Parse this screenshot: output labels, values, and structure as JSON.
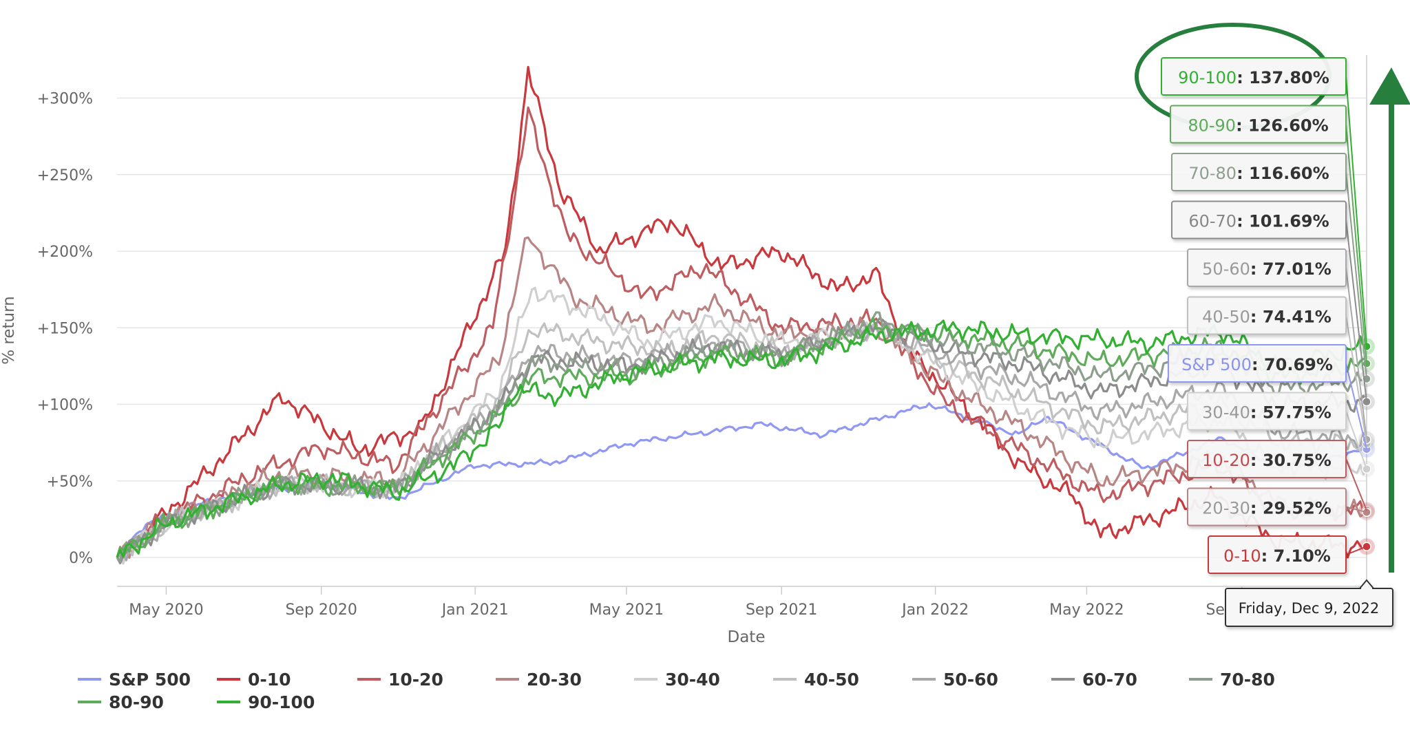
{
  "chart_data": {
    "type": "line",
    "title": "",
    "xlabel": "Date",
    "ylabel": "% return",
    "x_ticks": [
      "May 2020",
      "Sep 2020",
      "Jan 2021",
      "May 2021",
      "Sep 2021",
      "Jan 2022",
      "May 2022",
      "Sep 2022"
    ],
    "y_ticks": [
      "0%",
      "+50%",
      "+100%",
      "+150%",
      "+200%",
      "+250%",
      "+300%"
    ],
    "ylim": [
      -15,
      320
    ],
    "xlim": [
      "2020-03-23",
      "2022-12-09"
    ],
    "grid": true,
    "legend_position": "bottom",
    "hover_date": "Friday, Dec 9, 2022",
    "series": [
      {
        "name": "S&P 500",
        "color": "#9098f3",
        "final_value": "70.69%",
        "final": 70.69,
        "points": [
          [
            "2020-03-23",
            0
          ],
          [
            "2020-04-15",
            22
          ],
          [
            "2020-06-08",
            38
          ],
          [
            "2020-09-02",
            48
          ],
          [
            "2020-10-30",
            38
          ],
          [
            "2020-12-31",
            60
          ],
          [
            "2021-03-04",
            62
          ],
          [
            "2021-05-07",
            75
          ],
          [
            "2021-08-16",
            87
          ],
          [
            "2021-10-04",
            80
          ],
          [
            "2021-12-27",
            100
          ],
          [
            "2022-03-08",
            80
          ],
          [
            "2022-03-29",
            92
          ],
          [
            "2022-06-16",
            58
          ],
          [
            "2022-08-16",
            78
          ],
          [
            "2022-09-30",
            58
          ],
          [
            "2022-12-09",
            70.69
          ]
        ]
      },
      {
        "name": "0-10",
        "color": "#c8383c",
        "final_value": "7.10%",
        "final": 7.1,
        "points": [
          [
            "2020-03-23",
            0
          ],
          [
            "2020-04-20",
            20
          ],
          [
            "2020-06-20",
            70
          ],
          [
            "2020-08-01",
            105
          ],
          [
            "2020-10-01",
            70
          ],
          [
            "2020-11-20",
            85
          ],
          [
            "2021-01-25",
            200
          ],
          [
            "2021-02-12",
            318
          ],
          [
            "2021-03-10",
            240
          ],
          [
            "2021-04-10",
            200
          ],
          [
            "2021-06-05",
            220
          ],
          [
            "2021-07-15",
            190
          ],
          [
            "2021-09-01",
            200
          ],
          [
            "2021-10-15",
            175
          ],
          [
            "2021-11-15",
            185
          ],
          [
            "2021-12-10",
            135
          ],
          [
            "2022-02-10",
            85
          ],
          [
            "2022-03-10",
            60
          ],
          [
            "2022-04-20",
            40
          ],
          [
            "2022-05-12",
            15
          ],
          [
            "2022-06-20",
            25
          ],
          [
            "2022-08-10",
            40
          ],
          [
            "2022-09-30",
            10
          ],
          [
            "2022-12-09",
            7.1
          ]
        ]
      },
      {
        "name": "10-20",
        "color": "#bf5c60",
        "final_value": "30.75%",
        "final": 30.75,
        "points": [
          [
            "2020-03-23",
            0
          ],
          [
            "2020-04-20",
            20
          ],
          [
            "2020-07-10",
            55
          ],
          [
            "2020-09-01",
            72
          ],
          [
            "2020-10-30",
            60
          ],
          [
            "2021-01-15",
            150
          ],
          [
            "2021-02-12",
            290
          ],
          [
            "2021-03-15",
            210
          ],
          [
            "2021-05-15",
            170
          ],
          [
            "2021-07-01",
            190
          ],
          [
            "2021-09-01",
            150
          ],
          [
            "2021-11-15",
            155
          ],
          [
            "2022-01-10",
            100
          ],
          [
            "2022-03-10",
            70
          ],
          [
            "2022-04-10",
            55
          ],
          [
            "2022-05-12",
            40
          ],
          [
            "2022-08-15",
            60
          ],
          [
            "2022-09-30",
            30
          ],
          [
            "2022-12-09",
            30.75
          ]
        ]
      },
      {
        "name": "20-30",
        "color": "#b88484",
        "final_value": "29.52%",
        "final": 29.52,
        "points": [
          [
            "2020-03-23",
            0
          ],
          [
            "2020-05-01",
            25
          ],
          [
            "2020-08-01",
            55
          ],
          [
            "2020-10-30",
            50
          ],
          [
            "2021-01-20",
            130
          ],
          [
            "2021-02-12",
            210
          ],
          [
            "2021-03-20",
            170
          ],
          [
            "2021-05-20",
            150
          ],
          [
            "2021-07-10",
            165
          ],
          [
            "2021-09-01",
            145
          ],
          [
            "2021-11-15",
            150
          ],
          [
            "2022-01-15",
            110
          ],
          [
            "2022-03-10",
            85
          ],
          [
            "2022-05-12",
            50
          ],
          [
            "2022-08-15",
            65
          ],
          [
            "2022-09-30",
            35
          ],
          [
            "2022-12-09",
            29.52
          ]
        ]
      },
      {
        "name": "30-40",
        "color": "#cfcfcf",
        "final_value": "57.75%",
        "final": 57.75,
        "points": [
          [
            "2020-03-23",
            0
          ],
          [
            "2020-05-01",
            22
          ],
          [
            "2020-08-01",
            48
          ],
          [
            "2020-10-30",
            45
          ],
          [
            "2021-01-20",
            110
          ],
          [
            "2021-02-15",
            175
          ],
          [
            "2021-04-01",
            160
          ],
          [
            "2021-05-20",
            140
          ],
          [
            "2021-07-10",
            155
          ],
          [
            "2021-09-01",
            140
          ],
          [
            "2021-11-15",
            150
          ],
          [
            "2022-01-15",
            120
          ],
          [
            "2022-03-15",
            95
          ],
          [
            "2022-05-12",
            75
          ],
          [
            "2022-08-15",
            90
          ],
          [
            "2022-09-30",
            60
          ],
          [
            "2022-12-09",
            57.75
          ]
        ]
      },
      {
        "name": "40-50",
        "color": "#c0c0c0",
        "final_value": "74.41%",
        "final": 74.41,
        "points": [
          [
            "2020-03-23",
            0
          ],
          [
            "2020-05-01",
            22
          ],
          [
            "2020-08-01",
            48
          ],
          [
            "2020-10-30",
            45
          ],
          [
            "2021-01-20",
            105
          ],
          [
            "2021-02-15",
            150
          ],
          [
            "2021-04-15",
            140
          ],
          [
            "2021-06-01",
            135
          ],
          [
            "2021-07-10",
            145
          ],
          [
            "2021-09-01",
            135
          ],
          [
            "2021-11-15",
            150
          ],
          [
            "2022-01-15",
            125
          ],
          [
            "2022-03-15",
            105
          ],
          [
            "2022-05-12",
            85
          ],
          [
            "2022-08-15",
            100
          ],
          [
            "2022-09-30",
            75
          ],
          [
            "2022-12-09",
            74.41
          ]
        ]
      },
      {
        "name": "50-60",
        "color": "#a8a8a8",
        "final_value": "77.01%",
        "final": 77.01,
        "points": [
          [
            "2020-03-23",
            0
          ],
          [
            "2020-05-01",
            22
          ],
          [
            "2020-08-01",
            48
          ],
          [
            "2020-10-30",
            45
          ],
          [
            "2021-01-20",
            100
          ],
          [
            "2021-02-15",
            135
          ],
          [
            "2021-05-01",
            128
          ],
          [
            "2021-07-10",
            140
          ],
          [
            "2021-09-01",
            133
          ],
          [
            "2021-11-15",
            150
          ],
          [
            "2022-01-15",
            130
          ],
          [
            "2022-03-15",
            115
          ],
          [
            "2022-05-12",
            95
          ],
          [
            "2022-08-15",
            110
          ],
          [
            "2022-09-30",
            82
          ],
          [
            "2022-12-09",
            77.01
          ]
        ]
      },
      {
        "name": "60-70",
        "color": "#8c8c8c",
        "final_value": "101.69%",
        "final": 101.69,
        "points": [
          [
            "2020-03-23",
            0
          ],
          [
            "2020-05-01",
            22
          ],
          [
            "2020-08-01",
            48
          ],
          [
            "2020-10-30",
            45
          ],
          [
            "2021-01-20",
            98
          ],
          [
            "2021-02-15",
            130
          ],
          [
            "2021-05-01",
            125
          ],
          [
            "2021-07-10",
            138
          ],
          [
            "2021-09-01",
            132
          ],
          [
            "2021-11-15",
            152
          ],
          [
            "2022-01-15",
            135
          ],
          [
            "2022-03-15",
            125
          ],
          [
            "2022-05-12",
            108
          ],
          [
            "2022-08-15",
            125
          ],
          [
            "2022-09-30",
            100
          ],
          [
            "2022-12-09",
            101.69
          ]
        ]
      },
      {
        "name": "70-80",
        "color": "#8e9e8e",
        "final_value": "116.60%",
        "final": 116.6,
        "points": [
          [
            "2020-03-23",
            0
          ],
          [
            "2020-05-01",
            22
          ],
          [
            "2020-08-01",
            48
          ],
          [
            "2020-10-30",
            45
          ],
          [
            "2021-01-20",
            95
          ],
          [
            "2021-02-15",
            128
          ],
          [
            "2021-05-01",
            122
          ],
          [
            "2021-07-10",
            136
          ],
          [
            "2021-09-01",
            132
          ],
          [
            "2021-11-15",
            155
          ],
          [
            "2022-01-15",
            140
          ],
          [
            "2022-03-15",
            132
          ],
          [
            "2022-05-12",
            118
          ],
          [
            "2022-08-15",
            132
          ],
          [
            "2022-09-30",
            110
          ],
          [
            "2022-12-09",
            116.6
          ]
        ]
      },
      {
        "name": "80-90",
        "color": "#5eab5a",
        "final_value": "126.60%",
        "final": 126.6,
        "points": [
          [
            "2020-03-23",
            0
          ],
          [
            "2020-05-01",
            22
          ],
          [
            "2020-08-01",
            48
          ],
          [
            "2020-10-30",
            45
          ],
          [
            "2021-01-20",
            92
          ],
          [
            "2021-02-15",
            118
          ],
          [
            "2021-05-01",
            118
          ],
          [
            "2021-07-10",
            133
          ],
          [
            "2021-09-01",
            130
          ],
          [
            "2021-11-15",
            150
          ],
          [
            "2022-01-15",
            145
          ],
          [
            "2022-03-15",
            138
          ],
          [
            "2022-05-12",
            128
          ],
          [
            "2022-08-15",
            138
          ],
          [
            "2022-09-30",
            118
          ],
          [
            "2022-12-09",
            126.6
          ]
        ]
      },
      {
        "name": "90-100",
        "color": "#31b031",
        "final_value": "137.80%",
        "final": 137.8,
        "points": [
          [
            "2020-03-23",
            0
          ],
          [
            "2020-05-01",
            22
          ],
          [
            "2020-08-01",
            48
          ],
          [
            "2020-09-10",
            52
          ],
          [
            "2020-10-30",
            42
          ],
          [
            "2020-12-15",
            60
          ],
          [
            "2021-01-20",
            85
          ],
          [
            "2021-02-01",
            110
          ],
          [
            "2021-03-10",
            105
          ],
          [
            "2021-05-01",
            120
          ],
          [
            "2021-07-10",
            130
          ],
          [
            "2021-09-01",
            128
          ],
          [
            "2021-11-15",
            145
          ],
          [
            "2022-01-15",
            150
          ],
          [
            "2022-03-15",
            145
          ],
          [
            "2022-05-12",
            142
          ],
          [
            "2022-06-20",
            140
          ],
          [
            "2022-08-15",
            148
          ],
          [
            "2022-09-30",
            125
          ],
          [
            "2022-12-09",
            137.8
          ]
        ]
      }
    ]
  }
}
